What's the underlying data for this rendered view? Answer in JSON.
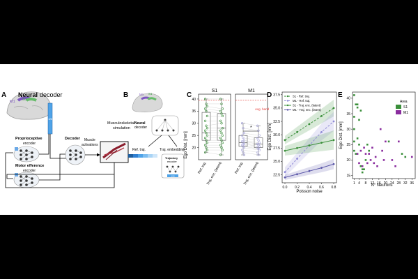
{
  "panels": {
    "A": {
      "letter": "A",
      "title_bold": "Neural",
      "title_rest": " decoder",
      "area_labels": [
        "M1",
        "S1"
      ],
      "latent_dim": "128",
      "proprio_label": "Proprioceptive",
      "proprio_sub": "encoder",
      "motor_label": "Motor efference",
      "motor_sub": "encoder",
      "decoder_label": "Decoder",
      "muscle_label": [
        "Muscle",
        "activations"
      ],
      "sim_label": [
        "Musculoskeletal",
        "simulation"
      ]
    },
    "B": {
      "letter": "B",
      "area_labels": [
        "M1",
        "S1"
      ],
      "neural_label": [
        "Neural",
        "decoder"
      ],
      "ref_label": "Ref. traj.",
      "emb_label": "Traj. embedding",
      "traj_label": [
        "Trajectory",
        "encoder"
      ],
      "dim": "128"
    },
    "C": {
      "letter": "C",
      "ylabel": "Ego Dist. [mm]",
      "yticks": [
        20,
        25,
        30,
        35,
        40
      ],
      "avg_hand_label": "Avg. hand",
      "sig_mark": "*"
    },
    "D": {
      "letter": "D",
      "xlabel": "Poisson noise",
      "ylabel": "Ego Dist. [mm]",
      "xticks": [
        "0.0",
        "0.2",
        "0.4",
        "0.6",
        "0.8"
      ],
      "yticks": [
        "22.5",
        "25.0",
        "27.5",
        "30.0",
        "32.5",
        "35.0",
        "37.5"
      ]
    },
    "E": {
      "letter": "E",
      "xlabel": "N° Neurons",
      "ylabel": "Ego Dist. [mm]",
      "xticks": [
        "1",
        "4",
        "8",
        "12",
        "16",
        "20",
        "24",
        "28",
        "32",
        "36"
      ],
      "yticks": [
        "15",
        "20",
        "25",
        "30",
        "35",
        "40"
      ],
      "legend_title": "Area"
    }
  },
  "colors": {
    "s1": "#3a8f3a",
    "m1": "#8a2c9e",
    "s1_light": "#8fcf8f",
    "m1_light": "#a9a7dd",
    "m1_dark": "#5a56a8",
    "red": "#e53935",
    "blue": "#2f7fd1",
    "light_blue": "#a9d4f5"
  },
  "chart_data": [
    {
      "type": "box",
      "panel": "C",
      "title": "S1",
      "categories": [
        "Ref. traj.",
        "Traj. enc. (latent)"
      ],
      "boxes": [
        {
          "q1": 23.0,
          "median": 26.0,
          "q3": 34.5,
          "min": 18.0,
          "max": 40.0
        },
        {
          "q1": 23.0,
          "median": 28.0,
          "q3": 34.0,
          "min": 17.0,
          "max": 40.0
        }
      ],
      "points": [
        [
          40,
          38,
          37,
          36,
          35,
          33,
          31,
          29,
          28,
          27,
          26,
          25,
          24,
          23,
          22,
          21,
          20,
          19,
          18
        ],
        [
          40,
          38,
          36,
          35,
          34,
          33,
          31,
          30,
          28,
          27,
          26,
          25,
          24,
          23,
          22,
          21,
          20,
          19,
          17
        ]
      ],
      "avg_hand": 39.5,
      "ylim": [
        15,
        42
      ],
      "ylabel": "Ego Dist. [mm]"
    },
    {
      "type": "box",
      "panel": "C",
      "title": "M1",
      "categories": [
        "Ref. traj.",
        "Traj. enc. (latent)"
      ],
      "boxes": [
        {
          "q1": 20.5,
          "median": 22.0,
          "q3": 25.0,
          "min": 17.0,
          "max": 30.0
        },
        {
          "q1": 20.0,
          "median": 21.5,
          "q3": 24.0,
          "min": 17.0,
          "max": 29.0
        }
      ],
      "points": [
        [
          30,
          28,
          26,
          25,
          24,
          23,
          22.5,
          22,
          21.5,
          21,
          20.5,
          20,
          19,
          18,
          17
        ],
        [
          29,
          27,
          25,
          24,
          23,
          22,
          21.5,
          21,
          20.5,
          20,
          19.5,
          19,
          18,
          17
        ]
      ],
      "avg_hand": 39.5,
      "ylim": [
        15,
        42
      ]
    },
    {
      "type": "line",
      "panel": "D",
      "x": [
        0.0,
        0.2,
        0.4,
        0.6,
        0.8
      ],
      "xlabel": "Poisson noise",
      "ylabel": "Ego Dist. [mm]",
      "ylim": [
        21,
        38
      ],
      "series": [
        {
          "name": "S1 - Ref. traj.",
          "values": [
            29.0,
            30.5,
            32.0,
            33.5,
            35.0
          ],
          "dashed": true,
          "color": "#3a8f3a",
          "band": 1.3
        },
        {
          "name": "M1 - Ref. traj.",
          "values": [
            23.0,
            25.5,
            28.0,
            30.5,
            32.5
          ],
          "dashed": true,
          "color": "#8f8ad6",
          "band": 1.5
        },
        {
          "name": "S1 - Traj. enc. (latent)",
          "values": [
            27.0,
            27.5,
            28.0,
            28.5,
            29.0
          ],
          "dashed": false,
          "color": "#3a8f3a",
          "band": 1.5
        },
        {
          "name": "M1 - Traj. enc. (latent)",
          "values": [
            22.0,
            22.6,
            23.2,
            23.8,
            24.5
          ],
          "dashed": false,
          "color": "#5a56a8",
          "band": 0.8
        }
      ],
      "legend": "top-left"
    },
    {
      "type": "scatter",
      "panel": "E",
      "xlabel": "N° Neurons",
      "ylabel": "Ego Dist. [mm]",
      "xlim": [
        0,
        38
      ],
      "ylim": [
        14,
        42
      ],
      "series": [
        {
          "name": "S1",
          "color": "#3a8f3a",
          "points": [
            [
              1,
              41
            ],
            [
              1,
              34
            ],
            [
              1,
              30
            ],
            [
              1,
              26
            ],
            [
              1,
              23
            ],
            [
              2,
              38
            ],
            [
              2,
              22
            ],
            [
              3,
              38
            ],
            [
              3,
              37
            ],
            [
              3,
              27
            ],
            [
              4,
              33
            ],
            [
              4,
              25
            ],
            [
              5,
              36
            ],
            [
              5,
              18
            ],
            [
              6,
              17
            ],
            [
              6,
              16
            ],
            [
              7,
              17
            ],
            [
              8,
              20
            ],
            [
              9,
              25
            ],
            [
              10,
              23
            ],
            [
              22,
              26
            ],
            [
              30,
              22
            ],
            [
              32,
              21
            ]
          ]
        },
        {
          "name": "M1",
          "color": "#8a2c9e",
          "points": [
            [
              3,
              22
            ],
            [
              4,
              19
            ],
            [
              5,
              23
            ],
            [
              6,
              18
            ],
            [
              7,
              24
            ],
            [
              8,
              22
            ],
            [
              9,
              19
            ],
            [
              10,
              22
            ],
            [
              11,
              20
            ],
            [
              12,
              24
            ],
            [
              13,
              19
            ],
            [
              14,
              21
            ],
            [
              15,
              18
            ],
            [
              17,
              30
            ],
            [
              18,
              23
            ],
            [
              19,
              20
            ],
            [
              20,
              26
            ],
            [
              24,
              20
            ],
            [
              26,
              18
            ],
            [
              28,
              26
            ],
            [
              36,
              21
            ]
          ]
        }
      ],
      "legend": "top-right"
    }
  ]
}
